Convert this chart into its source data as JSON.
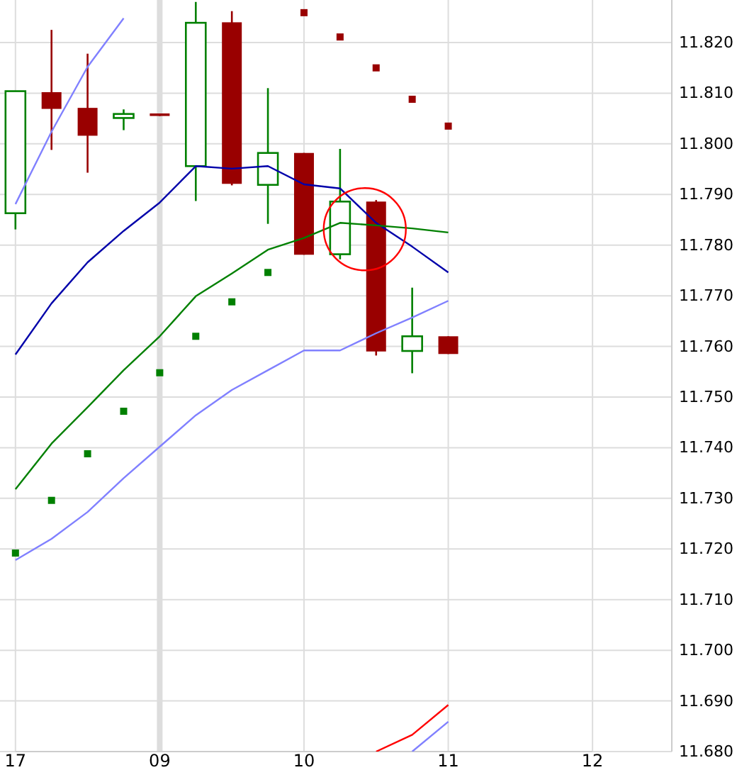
{
  "chart_data": {
    "type": "candlestick",
    "categories": [
      "17",
      null,
      null,
      null,
      "09",
      null,
      null,
      null,
      "10",
      null,
      null,
      null,
      "11",
      null,
      null,
      null,
      "12"
    ],
    "ohlc": [
      [
        11.7863,
        11.8104,
        11.7831,
        11.8104
      ],
      [
        11.8102,
        11.8225,
        11.7988,
        11.8069
      ],
      [
        11.8071,
        11.8178,
        11.7943,
        11.8016
      ],
      [
        11.8051,
        11.8068,
        11.8027,
        11.8059
      ],
      [
        11.806,
        11.806,
        11.8055,
        11.8055
      ],
      [
        11.7956,
        11.828,
        11.7887,
        11.8239
      ],
      [
        11.824,
        11.8262,
        11.7918,
        11.7921
      ],
      [
        11.7919,
        11.811,
        11.7842,
        11.7982
      ],
      [
        11.7982,
        11.7982,
        11.7781,
        11.7781
      ],
      [
        11.7782,
        11.799,
        11.7772,
        11.7886
      ],
      [
        11.7886,
        11.7889,
        11.7582,
        11.759
      ],
      [
        11.7591,
        11.7716,
        11.7547,
        11.762
      ],
      [
        11.762,
        11.762,
        11.7585,
        11.7585
      ],
      null,
      null,
      null,
      null
    ],
    "colors": [
      "#008000",
      "#990000",
      "#990000",
      "#008000",
      "#990000",
      "#008000",
      "#990000",
      "#008000",
      "#990000",
      "#008000",
      "#990000",
      "#008000",
      "#990000",
      null,
      null,
      null,
      null
    ],
    "series": [
      {
        "type": "line",
        "color": "#0000aa",
        "values": [
          11.7584,
          11.7685,
          11.7766,
          11.7828,
          11.7884,
          11.7956,
          11.7951,
          11.7956,
          11.792,
          11.7912,
          11.7844,
          11.7797,
          11.7746,
          null,
          null,
          null,
          null
        ]
      },
      {
        "type": "line",
        "color": "#008000",
        "values": [
          11.7318,
          11.7408,
          11.748,
          11.7553,
          11.762,
          11.7699,
          11.7744,
          11.7791,
          11.7814,
          11.7844,
          11.7839,
          11.7833,
          11.7825,
          null,
          null,
          null,
          null
        ]
      },
      {
        "type": "line",
        "color": "#8080ff",
        "values": [
          11.7881,
          11.8024,
          11.8152,
          11.8248,
          null,
          null,
          null,
          null,
          null,
          null,
          null,
          null,
          null,
          null,
          null,
          null,
          null
        ]
      },
      {
        "type": "line",
        "color": "#8080ff",
        "values": [
          11.7178,
          11.722,
          11.7273,
          11.734,
          11.7402,
          11.7464,
          11.7514,
          11.7553,
          11.7592,
          11.7592,
          11.7626,
          11.7657,
          11.769,
          null,
          null,
          null,
          null
        ]
      },
      {
        "type": "line",
        "color": "#8080ff",
        "values": [
          null,
          null,
          null,
          null,
          null,
          null,
          null,
          null,
          null,
          null,
          null,
          11.68,
          11.6859,
          null,
          null,
          null,
          null
        ]
      },
      {
        "type": "line",
        "color": "#ff0000",
        "values": [
          null,
          null,
          null,
          null,
          null,
          null,
          null,
          null,
          null,
          null,
          11.68,
          11.6833,
          11.6892,
          null,
          null,
          null,
          null
        ]
      },
      {
        "type": "scatter",
        "marker": "square",
        "color": "#008000",
        "values": [
          11.7192,
          11.7296,
          11.7388,
          11.7472,
          11.7548,
          11.762,
          11.7688,
          11.7746,
          null,
          null,
          null,
          null,
          null,
          null,
          null,
          null,
          null
        ]
      },
      {
        "type": "scatter",
        "marker": "square",
        "color": "#990000",
        "values": [
          null,
          null,
          null,
          null,
          null,
          null,
          null,
          null,
          11.8259,
          11.8211,
          11.815,
          11.8088,
          11.8035,
          null,
          null,
          null,
          null
        ]
      }
    ],
    "ylim": [
      11.68,
      11.8284
    ],
    "yticks": [
      {
        "value": 11.68,
        "label": "11.680"
      },
      {
        "value": 11.69,
        "label": "11.690"
      },
      {
        "value": 11.7,
        "label": "11.700"
      },
      {
        "value": 11.71,
        "label": "11.710"
      },
      {
        "value": 11.72,
        "label": "11.720"
      },
      {
        "value": 11.73,
        "label": "11.730"
      },
      {
        "value": 11.74,
        "label": "11.740"
      },
      {
        "value": 11.75,
        "label": "11.750"
      },
      {
        "value": 11.76,
        "label": "11.760"
      },
      {
        "value": 11.77,
        "label": "11.770"
      },
      {
        "value": 11.78,
        "label": "11.780"
      },
      {
        "value": 11.79,
        "label": "11.790"
      },
      {
        "value": 11.8,
        "label": "11.800"
      },
      {
        "value": 11.81,
        "label": "11.810"
      },
      {
        "value": 11.82,
        "label": "11.820"
      }
    ],
    "ref_lines": [
      {
        "axis": "x",
        "value": "09",
        "color": "#dddddd"
      }
    ],
    "grid": true
  }
}
